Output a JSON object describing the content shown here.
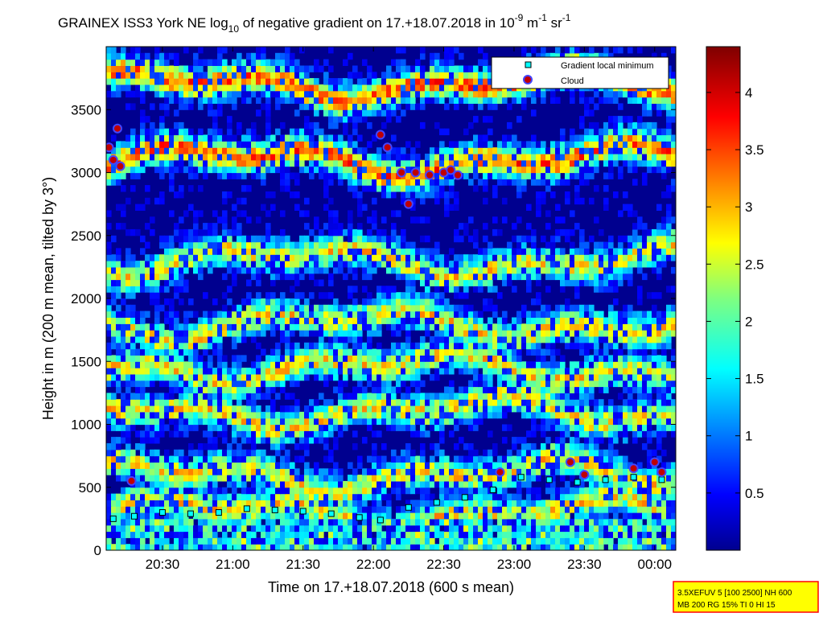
{
  "chart_data": {
    "type": "heatmap",
    "title_parts": {
      "a": "GRAINEX ISS3 York NE log",
      "b": "10",
      "c": " of negative gradient on 17.+18.07.2018 in 10",
      "d": "-9",
      "e": " m",
      "f": "-1",
      "g": " sr",
      "h": "-1"
    },
    "xlabel": "Time on 17.+18.07.2018 (600 s mean)",
    "ylabel": "Height in m (200 m mean, tilted by 3°)",
    "x_ticks": [
      "20:30",
      "21:00",
      "21:30",
      "22:00",
      "22:30",
      "23:00",
      "23:30",
      "00:00"
    ],
    "y_ticks": [
      "0",
      "500",
      "1000",
      "1500",
      "2000",
      "2500",
      "3000",
      "3500"
    ],
    "x_range_hours": [
      20.1,
      24.15
    ],
    "ylim": [
      0,
      4000
    ],
    "colorbar": {
      "ticks": [
        "0.5",
        "1",
        "1.5",
        "2",
        "2.5",
        "3",
        "3.5",
        "4"
      ],
      "range": [
        0,
        4.4
      ],
      "colormap": "jet"
    },
    "legend": {
      "position": "top-right",
      "entries": [
        {
          "label": "Gradient local minimum",
          "marker": "square",
          "color": "#00ffff"
        },
        {
          "label": "Cloud",
          "marker": "circle",
          "color": "#c00000"
        }
      ]
    },
    "series": [
      {
        "name": "Gradient local minimum",
        "x": [
          20.15,
          20.3,
          20.5,
          20.7,
          20.9,
          21.1,
          21.3,
          21.5,
          21.7,
          21.9,
          22.05,
          22.25,
          22.45,
          22.65,
          22.85,
          23.05,
          23.25,
          23.45,
          23.65,
          23.85,
          24.05
        ],
        "y": [
          250,
          270,
          300,
          290,
          300,
          330,
          320,
          310,
          290,
          260,
          240,
          340,
          380,
          420,
          480,
          580,
          560,
          540,
          560,
          580,
          560
        ]
      },
      {
        "name": "Cloud",
        "x": [
          20.12,
          20.15,
          20.18,
          20.2,
          20.28,
          22.05,
          22.1,
          22.2,
          22.25,
          22.3,
          22.4,
          22.5,
          22.55,
          22.6,
          22.9,
          23.4,
          23.5,
          23.85,
          24.0,
          24.05
        ],
        "y": [
          3200,
          3100,
          3350,
          3050,
          550,
          3300,
          3200,
          3000,
          2750,
          3000,
          2980,
          3000,
          3020,
          2980,
          620,
          700,
          600,
          650,
          700,
          620
        ]
      }
    ]
  },
  "footer": {
    "line1": "3.5XEFUV 5 [100 2500] NH 600",
    "line2": "MB 200 RG 15% TI 0 HI 15"
  },
  "colors": {
    "background": "#00008f",
    "footer_bg": "#ffff00",
    "footer_border": "#ff0000"
  }
}
